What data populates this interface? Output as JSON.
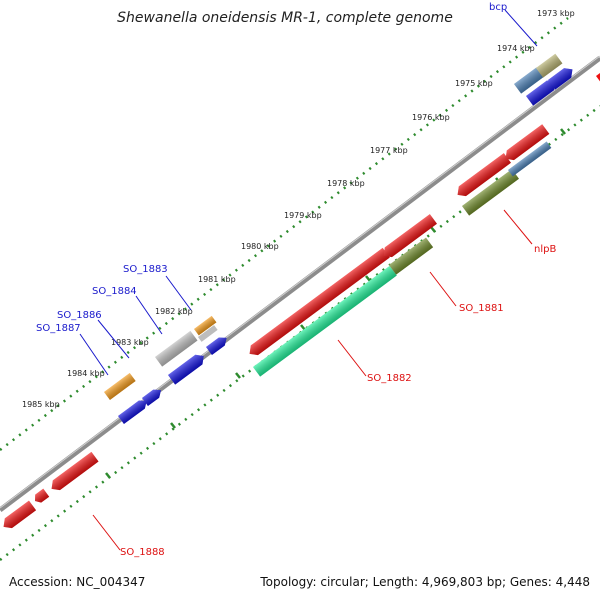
{
  "title": "Shewanella oneidensis MR-1, complete genome",
  "footer": {
    "accession": "Accession: NC_004347",
    "summary": "Topology: circular; Length: 4,969,803 bp; Genes: 4,448"
  },
  "ticks": [
    "1973 kbp",
    "1974 kbp",
    "1975 kbp",
    "1976 kbp",
    "1977 kbp",
    "1978 kbp",
    "1979 kbp",
    "1980 kbp",
    "1981 kbp",
    "1982 kbp",
    "1983 kbp",
    "1984 kbp",
    "1985 kbp"
  ],
  "gene_labels": {
    "bcp": "bcp",
    "so_1883": "SO_1883",
    "so_1884": "SO_1884",
    "so_1886": "SO_1886",
    "so_1887": "SO_1887",
    "nlpb": "nlpB",
    "so_1881": "SO_1881",
    "so_1882": "SO_1882",
    "so_1888": "SO_1888"
  },
  "colors": {
    "backbone": "#8c8c8c",
    "dots": "#2e8b2e",
    "red": "#ee1111",
    "blue": "#1111dd",
    "steel_blue": "#4a7fb5",
    "khaki": "#b5b070",
    "olive": "#6f8a2a",
    "aqua": "#22ee99",
    "orange": "#f39a1a",
    "grey": "#bdbdbd"
  }
}
